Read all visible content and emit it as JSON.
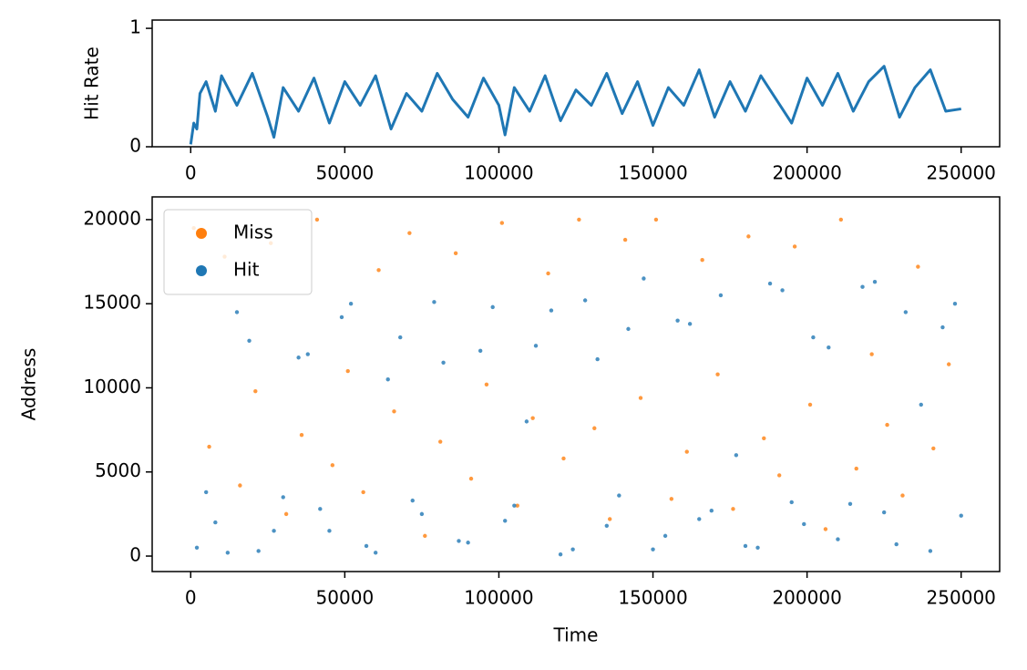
{
  "chart_data": [
    {
      "type": "line",
      "ylabel": "Hit Rate",
      "color": "#1f77b4",
      "x": [
        0,
        1000,
        2000,
        3000,
        5000,
        8000,
        10000,
        15000,
        20000,
        25000,
        27000,
        30000,
        35000,
        40000,
        45000,
        50000,
        55000,
        60000,
        65000,
        70000,
        75000,
        80000,
        85000,
        90000,
        95000,
        100000,
        102000,
        105000,
        110000,
        115000,
        120000,
        125000,
        130000,
        135000,
        140000,
        145000,
        150000,
        155000,
        160000,
        165000,
        170000,
        175000,
        180000,
        185000,
        190000,
        195000,
        200000,
        205000,
        210000,
        215000,
        220000,
        225000,
        230000,
        235000,
        240000,
        245000,
        250000
      ],
      "values": [
        0.02,
        0.2,
        0.15,
        0.45,
        0.55,
        0.3,
        0.6,
        0.35,
        0.62,
        0.25,
        0.08,
        0.5,
        0.3,
        0.58,
        0.2,
        0.55,
        0.35,
        0.6,
        0.15,
        0.45,
        0.3,
        0.62,
        0.4,
        0.25,
        0.58,
        0.35,
        0.1,
        0.5,
        0.3,
        0.6,
        0.22,
        0.48,
        0.35,
        0.62,
        0.28,
        0.55,
        0.18,
        0.5,
        0.35,
        0.65,
        0.25,
        0.55,
        0.3,
        0.6,
        0.4,
        0.2,
        0.58,
        0.35,
        0.62,
        0.3,
        0.55,
        0.68,
        0.25,
        0.5,
        0.65,
        0.3,
        0.32
      ],
      "xlim": [
        -12500,
        262500
      ],
      "ylim": [
        0,
        1.07
      ],
      "xticks": [
        0,
        50000,
        100000,
        150000,
        200000,
        250000
      ],
      "yticks": [
        0,
        1
      ]
    },
    {
      "type": "scatter",
      "xlabel": "Time",
      "ylabel": "Address",
      "legend": "upper left",
      "xlim": [
        -12500,
        262500
      ],
      "ylim": [
        -920,
        21350
      ],
      "xticks": [
        0,
        50000,
        100000,
        150000,
        200000,
        250000
      ],
      "yticks": [
        0,
        5000,
        10000,
        15000,
        20000
      ],
      "series": [
        {
          "name": "Miss",
          "color": "#ff7f0e",
          "x": [
            1000,
            6000,
            11000,
            16000,
            21000,
            26000,
            31000,
            36000,
            41000,
            46000,
            51000,
            56000,
            61000,
            66000,
            71000,
            76000,
            81000,
            86000,
            91000,
            96000,
            101000,
            106000,
            111000,
            116000,
            121000,
            126000,
            131000,
            136000,
            141000,
            146000,
            151000,
            156000,
            161000,
            166000,
            171000,
            176000,
            181000,
            186000,
            191000,
            196000,
            201000,
            206000,
            211000,
            216000,
            221000,
            226000,
            231000,
            236000,
            241000,
            246000
          ],
          "values": [
            19500,
            6500,
            17800,
            4200,
            9800,
            18600,
            2500,
            7200,
            20000,
            5400,
            11000,
            3800,
            17000,
            8600,
            19200,
            1200,
            6800,
            18000,
            4600,
            10200,
            19800,
            3000,
            8200,
            16800,
            5800,
            20000,
            7600,
            2200,
            18800,
            9400,
            20000,
            3400,
            6200,
            17600,
            10800,
            2800,
            19000,
            7000,
            4800,
            18400,
            9000,
            1600,
            20000,
            5200,
            12000,
            7800,
            3600,
            17200,
            6400,
            11400
          ]
        },
        {
          "name": "Hit",
          "color": "#1f77b4",
          "x": [
            2000,
            8000,
            15000,
            22000,
            30000,
            38000,
            45000,
            52000,
            60000,
            68000,
            75000,
            82000,
            90000,
            98000,
            105000,
            112000,
            120000,
            128000,
            135000,
            142000,
            150000,
            158000,
            165000,
            172000,
            180000,
            188000,
            195000,
            202000,
            210000,
            218000,
            225000,
            232000,
            240000,
            248000,
            5000,
            12000,
            19000,
            27000,
            35000,
            42000,
            49000,
            57000,
            64000,
            72000,
            79000,
            87000,
            94000,
            102000,
            109000,
            117000,
            124000,
            132000,
            139000,
            147000,
            154000,
            162000,
            169000,
            177000,
            184000,
            192000,
            199000,
            207000,
            214000,
            222000,
            229000,
            237000,
            244000,
            250000
          ],
          "values": [
            500,
            2000,
            14500,
            300,
            3500,
            12000,
            1500,
            15000,
            200,
            13000,
            2500,
            11500,
            800,
            14800,
            3000,
            12500,
            100,
            15200,
            1800,
            13500,
            400,
            14000,
            2200,
            15500,
            600,
            16200,
            3200,
            13000,
            1000,
            16000,
            2600,
            14500,
            300,
            15000,
            3800,
            200,
            12800,
            1500,
            11800,
            2800,
            14200,
            600,
            10500,
            3300,
            15100,
            900,
            12200,
            2100,
            8000,
            14600,
            400,
            11700,
            3600,
            16500,
            1200,
            13800,
            2700,
            6000,
            500,
            15800,
            1900,
            12400,
            3100,
            16300,
            700,
            9000,
            13600,
            2400
          ]
        }
      ]
    }
  ]
}
